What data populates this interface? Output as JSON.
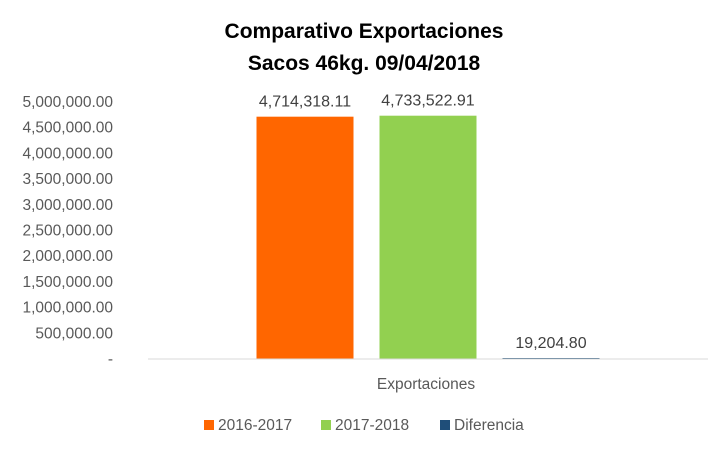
{
  "chart_data": {
    "type": "bar",
    "title": "Comparativo Exportaciones",
    "subtitle": "Sacos 46kg. 09/04/2018",
    "categories": [
      "Exportaciones"
    ],
    "series": [
      {
        "name": "2016-2017",
        "values": [
          4714318.11
        ],
        "label": "4,714,318.11",
        "color": "#FF6600"
      },
      {
        "name": "2017-2018",
        "values": [
          4733522.91
        ],
        "label": "4,733,522.91",
        "color": "#92D050"
      },
      {
        "name": "Diferencia",
        "values": [
          19204.8
        ],
        "label": "19,204.80",
        "color": "#1F4E79"
      }
    ],
    "ylim": [
      0,
      5000000
    ],
    "yticks": [
      {
        "value": 0,
        "label": "-"
      },
      {
        "value": 500000,
        "label": "500,000.00"
      },
      {
        "value": 1000000,
        "label": "1,000,000.00"
      },
      {
        "value": 1500000,
        "label": "1,500,000.00"
      },
      {
        "value": 2000000,
        "label": "2,000,000.00"
      },
      {
        "value": 2500000,
        "label": "2,500,000.00"
      },
      {
        "value": 3000000,
        "label": "3,000,000.00"
      },
      {
        "value": 3500000,
        "label": "3,500,000.00"
      },
      {
        "value": 4000000,
        "label": "4,000,000.00"
      },
      {
        "value": 4500000,
        "label": "4,500,000.00"
      },
      {
        "value": 5000000,
        "label": "5,000,000.00"
      }
    ],
    "grid": false,
    "legend_position": "bottom"
  }
}
